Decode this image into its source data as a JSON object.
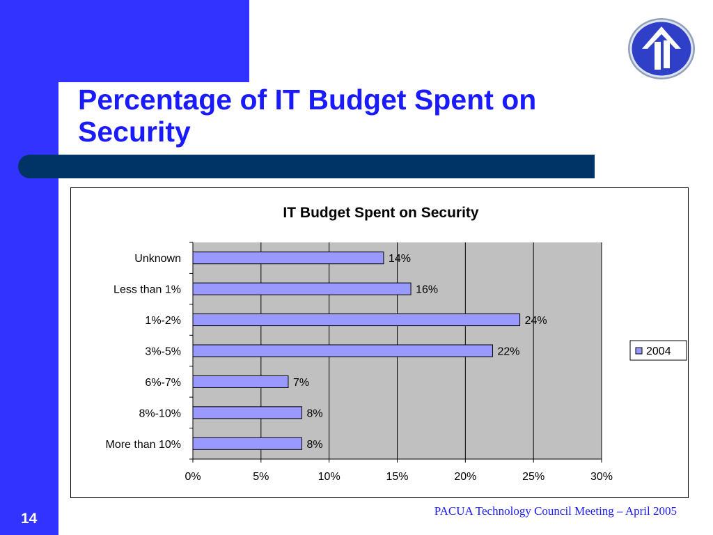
{
  "slide": {
    "title": "Percentage of IT Budget Spent on Security",
    "number": "14",
    "footer": "PACUA Technology Council Meeting – April 2005",
    "colors": {
      "accent_blue": "#3333FF",
      "bar_navy": "#003366",
      "title_blue": "#1a1aff",
      "bar_fill": "#9999FF",
      "plot_bg": "#C0C0C0"
    },
    "logo_icon": "up-arrow-circle-logo-icon"
  },
  "chart_data": {
    "type": "bar",
    "orientation": "horizontal",
    "title": "IT Budget Spent on Security",
    "categories": [
      "Unknown",
      "Less than 1%",
      "1%-2%",
      "3%-5%",
      "6%-7%",
      "8%-10%",
      "More than 10%"
    ],
    "series": [
      {
        "name": "2004",
        "values": [
          14,
          16,
          24,
          22,
          7,
          8,
          8
        ]
      }
    ],
    "data_labels": [
      "14%",
      "16%",
      "24%",
      "22%",
      "7%",
      "8%",
      "8%"
    ],
    "xticks": [
      "0%",
      "5%",
      "10%",
      "15%",
      "20%",
      "25%",
      "30%"
    ],
    "xlim": [
      0,
      30
    ],
    "grid": true,
    "legend": "right"
  }
}
